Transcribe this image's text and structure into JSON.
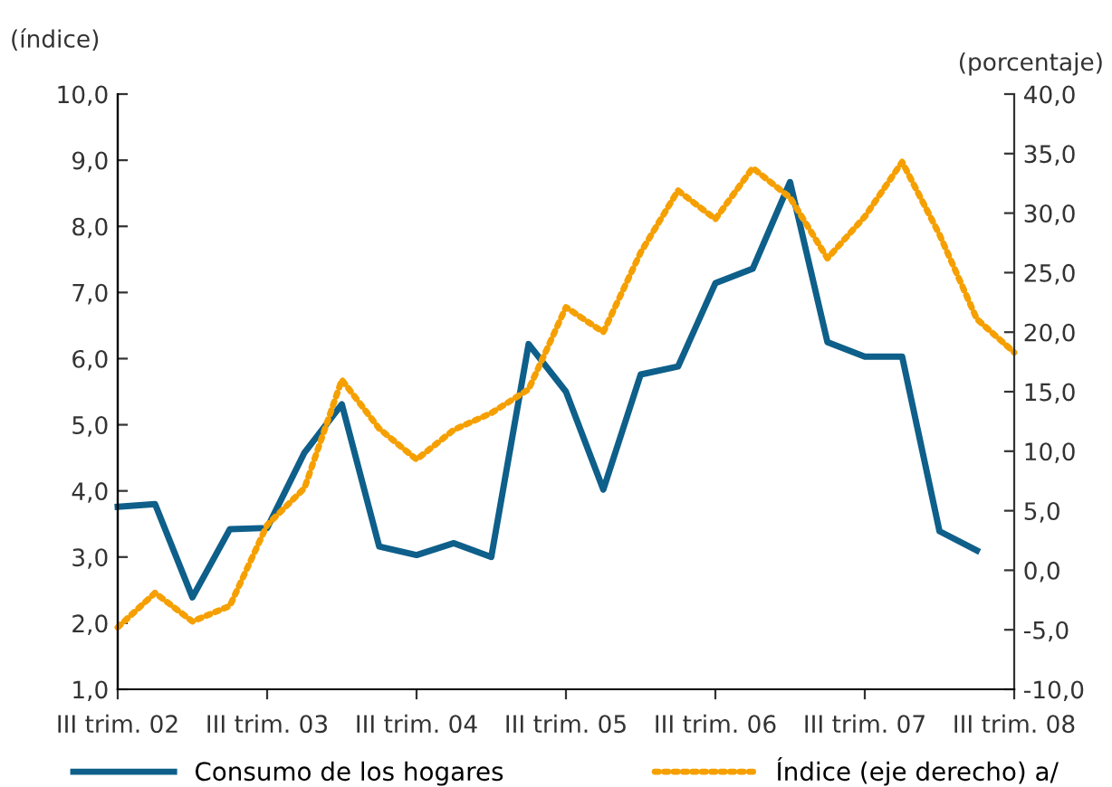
{
  "chart_data": {
    "type": "line",
    "ylabel": "(índice)",
    "y2label": "(porcentaje)",
    "categories": [
      "III trim. 02",
      null,
      null,
      null,
      "III trim. 03",
      null,
      null,
      null,
      "III trim. 04",
      null,
      null,
      null,
      "III trim. 05",
      null,
      null,
      null,
      "III trim. 06",
      null,
      null,
      null,
      "III trim. 07",
      null,
      null,
      null,
      "III trim. 08"
    ],
    "series": [
      {
        "name": "Consumo de los hogares",
        "color": "#0e5f8a",
        "line_style": "solid",
        "values": [
          3.76,
          3.8,
          2.39,
          3.42,
          3.44,
          4.58,
          5.31,
          3.16,
          3.03,
          3.21,
          3.0,
          6.22,
          5.5,
          4.02,
          5.76,
          5.88,
          7.14,
          7.36,
          8.67,
          6.25,
          6.03,
          6.03,
          3.39,
          3.1,
          null
        ]
      },
      {
        "name": "Índice (eje derecho) a/",
        "color": "#f5a000",
        "line_style": "dotted",
        "axis": "y2",
        "values": [
          -4.8,
          -1.9,
          -4.3,
          -3.0,
          3.8,
          6.9,
          16.0,
          11.9,
          9.3,
          11.8,
          13.2,
          15.2,
          22.1,
          20.0,
          26.7,
          31.9,
          29.5,
          33.8,
          31.3,
          26.2,
          29.7,
          34.3,
          28.2,
          21.1,
          18.3
        ]
      }
    ],
    "ylim": [
      1,
      10
    ],
    "yticks": [
      {
        "value": 1,
        "label": "1,0"
      },
      {
        "value": 2,
        "label": "2,0"
      },
      {
        "value": 3,
        "label": "3,0"
      },
      {
        "value": 4,
        "label": "4,0"
      },
      {
        "value": 5,
        "label": "5,0"
      },
      {
        "value": 6,
        "label": "6,0"
      },
      {
        "value": 7,
        "label": "7,0"
      },
      {
        "value": 8,
        "label": "8,0"
      },
      {
        "value": 9,
        "label": "9,0"
      },
      {
        "value": 10,
        "label": "10,0"
      }
    ],
    "y2lim": [
      -10,
      40
    ],
    "y2ticks": [
      {
        "value": -10,
        "label": "-10,0"
      },
      {
        "value": -5,
        "label": "-5,0"
      },
      {
        "value": 0,
        "label": "0,0"
      },
      {
        "value": 5,
        "label": "5,0"
      },
      {
        "value": 10,
        "label": "10,0"
      },
      {
        "value": 15,
        "label": "15,0"
      },
      {
        "value": 20,
        "label": "20,0"
      },
      {
        "value": 25,
        "label": "25,0"
      },
      {
        "value": 30,
        "label": "30,0"
      },
      {
        "value": 35,
        "label": "35,0"
      },
      {
        "value": 40,
        "label": "40,0"
      }
    ],
    "grid": false,
    "legend": "bottom",
    "marker": "none"
  }
}
